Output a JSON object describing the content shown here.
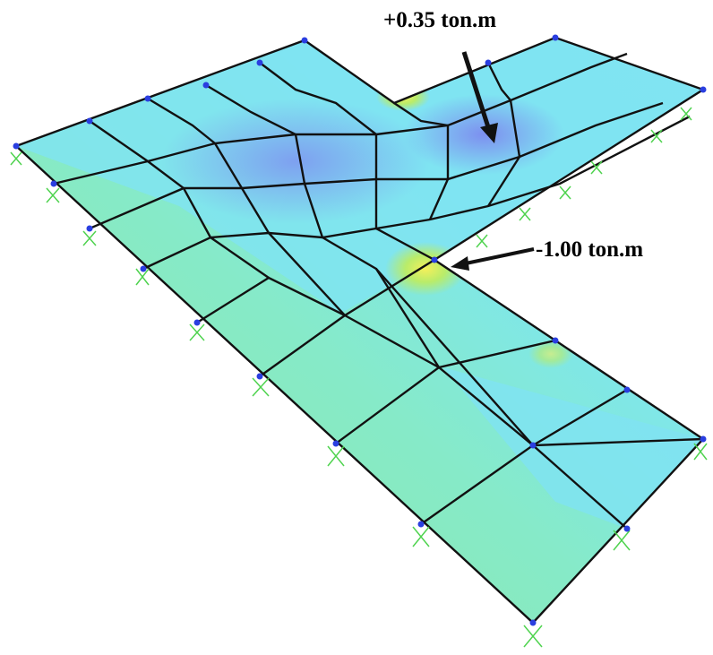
{
  "annotations": {
    "max_moment": "+0.35 ton.m",
    "min_moment": "-1.00 ton.m"
  }
}
